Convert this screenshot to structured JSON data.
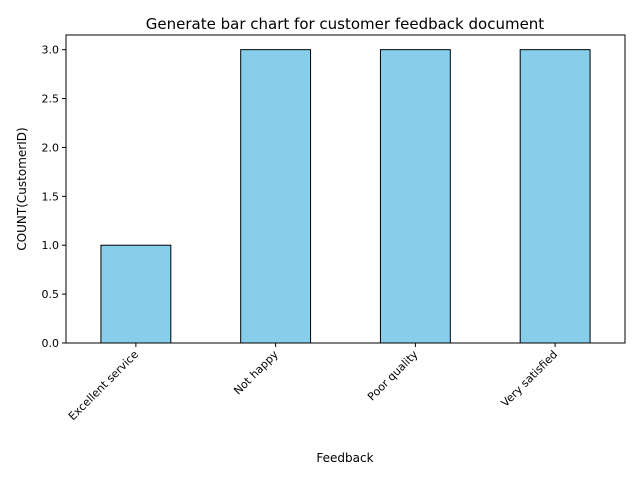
{
  "chart_data": {
    "type": "bar",
    "title": "Generate bar chart for customer feedback document",
    "xlabel": "Feedback",
    "ylabel": "COUNT(CustomerID)",
    "categories": [
      "Excellent service",
      "Not happy",
      "Poor quality",
      "Very satisfied"
    ],
    "values": [
      1,
      3,
      3,
      3
    ],
    "ylim": [
      0,
      3.15
    ],
    "yticks": [
      "0.0",
      "0.5",
      "1.0",
      "1.5",
      "2.0",
      "2.5",
      "3.0"
    ],
    "grid": false,
    "legend": "none",
    "colors": {
      "bar_fill": "#87ceeb",
      "bar_edge": "#000000",
      "axis": "#000000"
    }
  }
}
